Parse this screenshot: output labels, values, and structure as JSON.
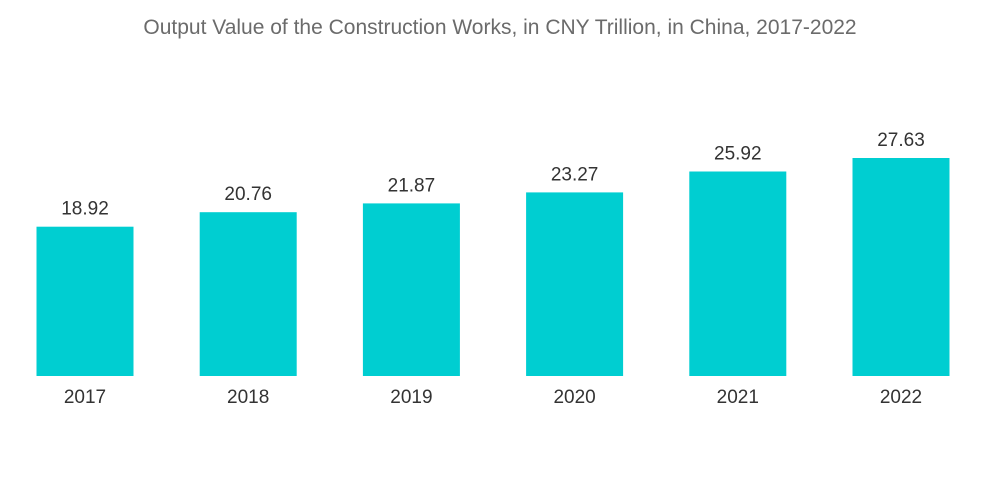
{
  "chart_data": {
    "type": "bar",
    "title": "Output Value of the Construction Works, in CNY Trillion, in China, 2017-2022",
    "categories": [
      "2017",
      "2018",
      "2019",
      "2020",
      "2021",
      "2022"
    ],
    "values": [
      18.92,
      20.76,
      21.87,
      23.27,
      25.92,
      27.63
    ],
    "value_labels": [
      "18.92",
      "20.76",
      "21.87",
      "23.27",
      "25.92",
      "27.63"
    ],
    "xlabel": "",
    "ylabel": "",
    "ylim": [
      0,
      27.63
    ],
    "grid": false,
    "legend": "none",
    "bar_color": "#00CED1",
    "text_color": "#333333",
    "title_color": "#6b6b6b"
  }
}
